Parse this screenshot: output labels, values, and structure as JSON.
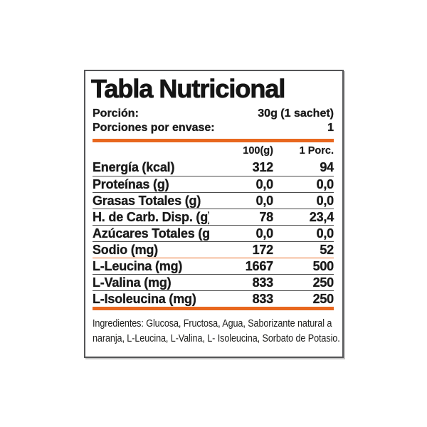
{
  "panel": {
    "title": "Tabla Nutricional",
    "serving": {
      "portion_label": "Porción:",
      "portion_value": "30g (1 sachet)",
      "per_container_label": "Porciones por envase:",
      "per_container_value": "1"
    },
    "table": {
      "col_headers": [
        "100(g)",
        "1 Porc."
      ],
      "rows": [
        {
          "label": "Energía (kcal)",
          "per100": "312",
          "per_portion": "94"
        },
        {
          "label": "Proteínas (g)",
          "per100": "0,0",
          "per_portion": "0,0"
        },
        {
          "label": "Grasas Totales (g)",
          "per100": "0,0",
          "per_portion": "0,0"
        },
        {
          "label": "H. de Carb. Disp. (g)",
          "per100": "78",
          "per_portion": "23,4"
        },
        {
          "label": "Azúcares Totales (g)",
          "per100": "0,0",
          "per_portion": "0,0"
        },
        {
          "label": "Sodio (mg)",
          "per100": "172",
          "per_portion": "52"
        },
        {
          "label": "L-Leucina (mg)",
          "per100": "1667",
          "per_portion": "500"
        },
        {
          "label": "L-Valina (mg)",
          "per100": "833",
          "per_portion": "250"
        },
        {
          "label": "L-Isoleucina (mg)",
          "per100": "833",
          "per_portion": "250"
        }
      ]
    },
    "ingredients": {
      "lines": [
        "Ingredientes: Glucosa, Fructosa, Agua, Saborizante natural a",
        "naranja, L-Leucina, L-Valina, L- Isoleucina, Sorbato de Potasio."
      ]
    },
    "colors": {
      "accent_orange": "#e8671e",
      "text_black": "#1a1a1a",
      "border_gray": "#545557"
    }
  }
}
